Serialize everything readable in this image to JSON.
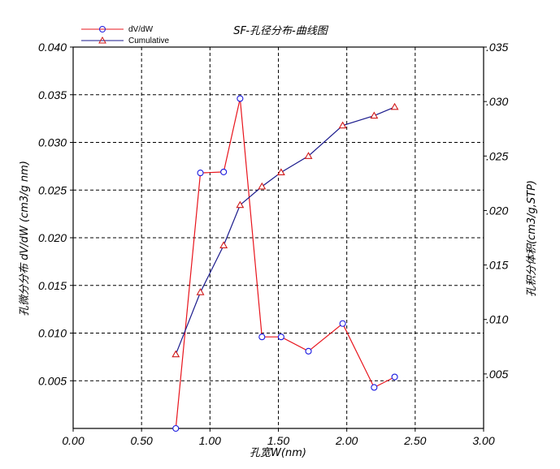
{
  "chart_data": {
    "type": "line",
    "title": "SF-孔径分布-曲线图",
    "xlabel": "孔宽W(nm)",
    "ylabel_left": "孔微分分布 dV/dW (cm3/g nm)",
    "ylabel_right": "孔积分体积(cm3/g,STP)",
    "xlim": [
      0,
      3
    ],
    "ylim_left": [
      0,
      0.04
    ],
    "ylim_right": [
      0,
      0.035
    ],
    "x_ticks": [
      "0.00",
      "0.50",
      "1.00",
      "1.50",
      "2.00",
      "2.50",
      "3.00"
    ],
    "y_ticks_left": [
      "0.005",
      "0.010",
      "0.015",
      "0.020",
      "0.025",
      "0.030",
      "0.035",
      "0.040"
    ],
    "y_ticks_right": [
      ".005",
      ".010",
      ".015",
      ".020",
      ".025",
      ".030",
      ".035"
    ],
    "grid": true,
    "legend_position": "top-left",
    "series": [
      {
        "name": "dV/dW",
        "axis": "left",
        "color": "#e8141c",
        "marker": "circle",
        "marker_color": "#1a1ae0",
        "x": [
          0.75,
          0.93,
          1.1,
          1.22,
          1.38,
          1.52,
          1.72,
          1.97,
          2.2,
          2.35
        ],
        "y": [
          0.0,
          0.0268,
          0.0269,
          0.0346,
          0.0096,
          0.0096,
          0.0081,
          0.011,
          0.0043,
          0.0054
        ]
      },
      {
        "name": "Cumulative",
        "axis": "right",
        "color": "#1a1a8c",
        "marker": "triangle",
        "marker_color": "#d01818",
        "x": [
          0.75,
          0.93,
          1.1,
          1.22,
          1.38,
          1.52,
          1.72,
          1.97,
          2.2,
          2.35
        ],
        "y": [
          0.0068,
          0.0125,
          0.0168,
          0.0205,
          0.0222,
          0.0235,
          0.025,
          0.0278,
          0.0287,
          0.0295
        ]
      }
    ]
  }
}
